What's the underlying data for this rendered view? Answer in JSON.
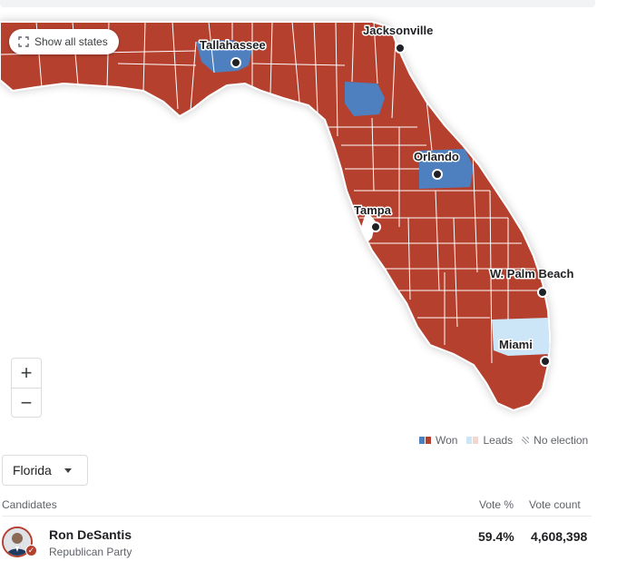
{
  "map": {
    "show_all_label": "Show all states",
    "zoom_in_label": "+",
    "zoom_out_label": "−",
    "cities": [
      {
        "name": "Jacksonville"
      },
      {
        "name": "Tallahassee"
      },
      {
        "name": "Orlando"
      },
      {
        "name": "Tampa"
      },
      {
        "name": "W. Palm Beach"
      },
      {
        "name": "Miami"
      }
    ],
    "colors": {
      "won_red": "#b5402f",
      "won_blue": "#4e80c0",
      "leads_light_blue": "#cde6f7",
      "no_election": "#e8eaed"
    }
  },
  "legend": {
    "won_label": "Won",
    "leads_label": "Leads",
    "no_election_label": "No election"
  },
  "selector": {
    "selected": "Florida"
  },
  "table": {
    "headers": {
      "candidates": "Candidates",
      "vote_pct": "Vote %",
      "vote_count": "Vote count"
    },
    "rows": [
      {
        "name": "Ron DeSantis",
        "party": "Republican Party",
        "vote_pct": "59.4%",
        "vote_count": "4,608,398"
      }
    ]
  }
}
